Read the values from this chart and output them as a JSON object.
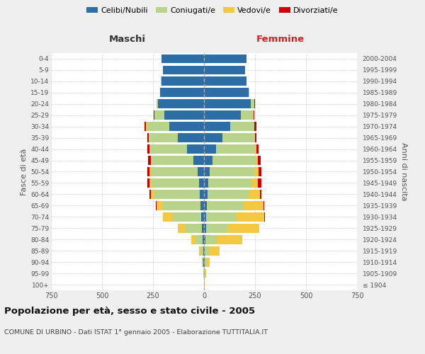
{
  "age_groups": [
    "100+",
    "95-99",
    "90-94",
    "85-89",
    "80-84",
    "75-79",
    "70-74",
    "65-69",
    "60-64",
    "55-59",
    "50-54",
    "45-49",
    "40-44",
    "35-39",
    "30-34",
    "25-29",
    "20-24",
    "15-19",
    "10-14",
    "5-9",
    "0-4"
  ],
  "birth_years": [
    "≤ 1904",
    "1905-1909",
    "1910-1914",
    "1915-1919",
    "1920-1924",
    "1925-1929",
    "1930-1934",
    "1935-1939",
    "1940-1944",
    "1945-1949",
    "1950-1954",
    "1955-1959",
    "1960-1964",
    "1965-1969",
    "1970-1974",
    "1975-1979",
    "1980-1984",
    "1985-1989",
    "1990-1994",
    "1995-1999",
    "2000-2004"
  ],
  "maschi_celibi": [
    0,
    1,
    2,
    3,
    6,
    10,
    15,
    18,
    22,
    26,
    32,
    52,
    82,
    130,
    170,
    195,
    225,
    215,
    210,
    202,
    210
  ],
  "maschi_coniugati": [
    1,
    2,
    4,
    12,
    38,
    85,
    140,
    185,
    220,
    230,
    228,
    205,
    182,
    140,
    112,
    48,
    8,
    2,
    1,
    0,
    0
  ],
  "maschi_vedovi": [
    0,
    1,
    3,
    8,
    18,
    32,
    45,
    28,
    18,
    12,
    6,
    4,
    2,
    1,
    1,
    1,
    0,
    0,
    0,
    0,
    0
  ],
  "maschi_divorziati": [
    0,
    0,
    0,
    0,
    1,
    2,
    3,
    4,
    8,
    11,
    13,
    13,
    11,
    7,
    7,
    2,
    1,
    0,
    0,
    0,
    0
  ],
  "femmine_celibi": [
    0,
    1,
    2,
    4,
    8,
    10,
    12,
    15,
    18,
    22,
    28,
    42,
    60,
    90,
    130,
    180,
    230,
    218,
    208,
    200,
    210
  ],
  "femmine_coniugati": [
    1,
    3,
    8,
    20,
    55,
    105,
    148,
    180,
    205,
    215,
    220,
    210,
    190,
    155,
    115,
    62,
    18,
    4,
    1,
    0,
    0
  ],
  "femmine_vedovi": [
    2,
    5,
    18,
    52,
    125,
    155,
    135,
    95,
    50,
    28,
    18,
    12,
    8,
    4,
    2,
    1,
    0,
    0,
    0,
    0,
    0
  ],
  "femmine_divorziati": [
    0,
    0,
    0,
    0,
    1,
    2,
    3,
    4,
    7,
    17,
    14,
    14,
    11,
    9,
    9,
    2,
    1,
    0,
    0,
    0,
    0
  ],
  "colors": {
    "celibi": "#2e6ea6",
    "coniugati": "#b8d48a",
    "vedovi": "#f5c842",
    "divorziati": "#cc0000"
  },
  "title": "Popolazione per età, sesso e stato civile - 2005",
  "subtitle": "COMUNE DI URBINO - Dati ISTAT 1° gennaio 2005 - Elaborazione TUTTITALIA.IT",
  "maschi_label": "Maschi",
  "femmine_label": "Femmine",
  "ylabel_left": "Fasce di età",
  "ylabel_right": "Anni di nascita",
  "xlim": 750,
  "legend_labels": [
    "Celibi/Nubili",
    "Coniugati/e",
    "Vedovi/e",
    "Divorziati/e"
  ],
  "bg_color": "#efefef",
  "plot_bg": "#ffffff"
}
